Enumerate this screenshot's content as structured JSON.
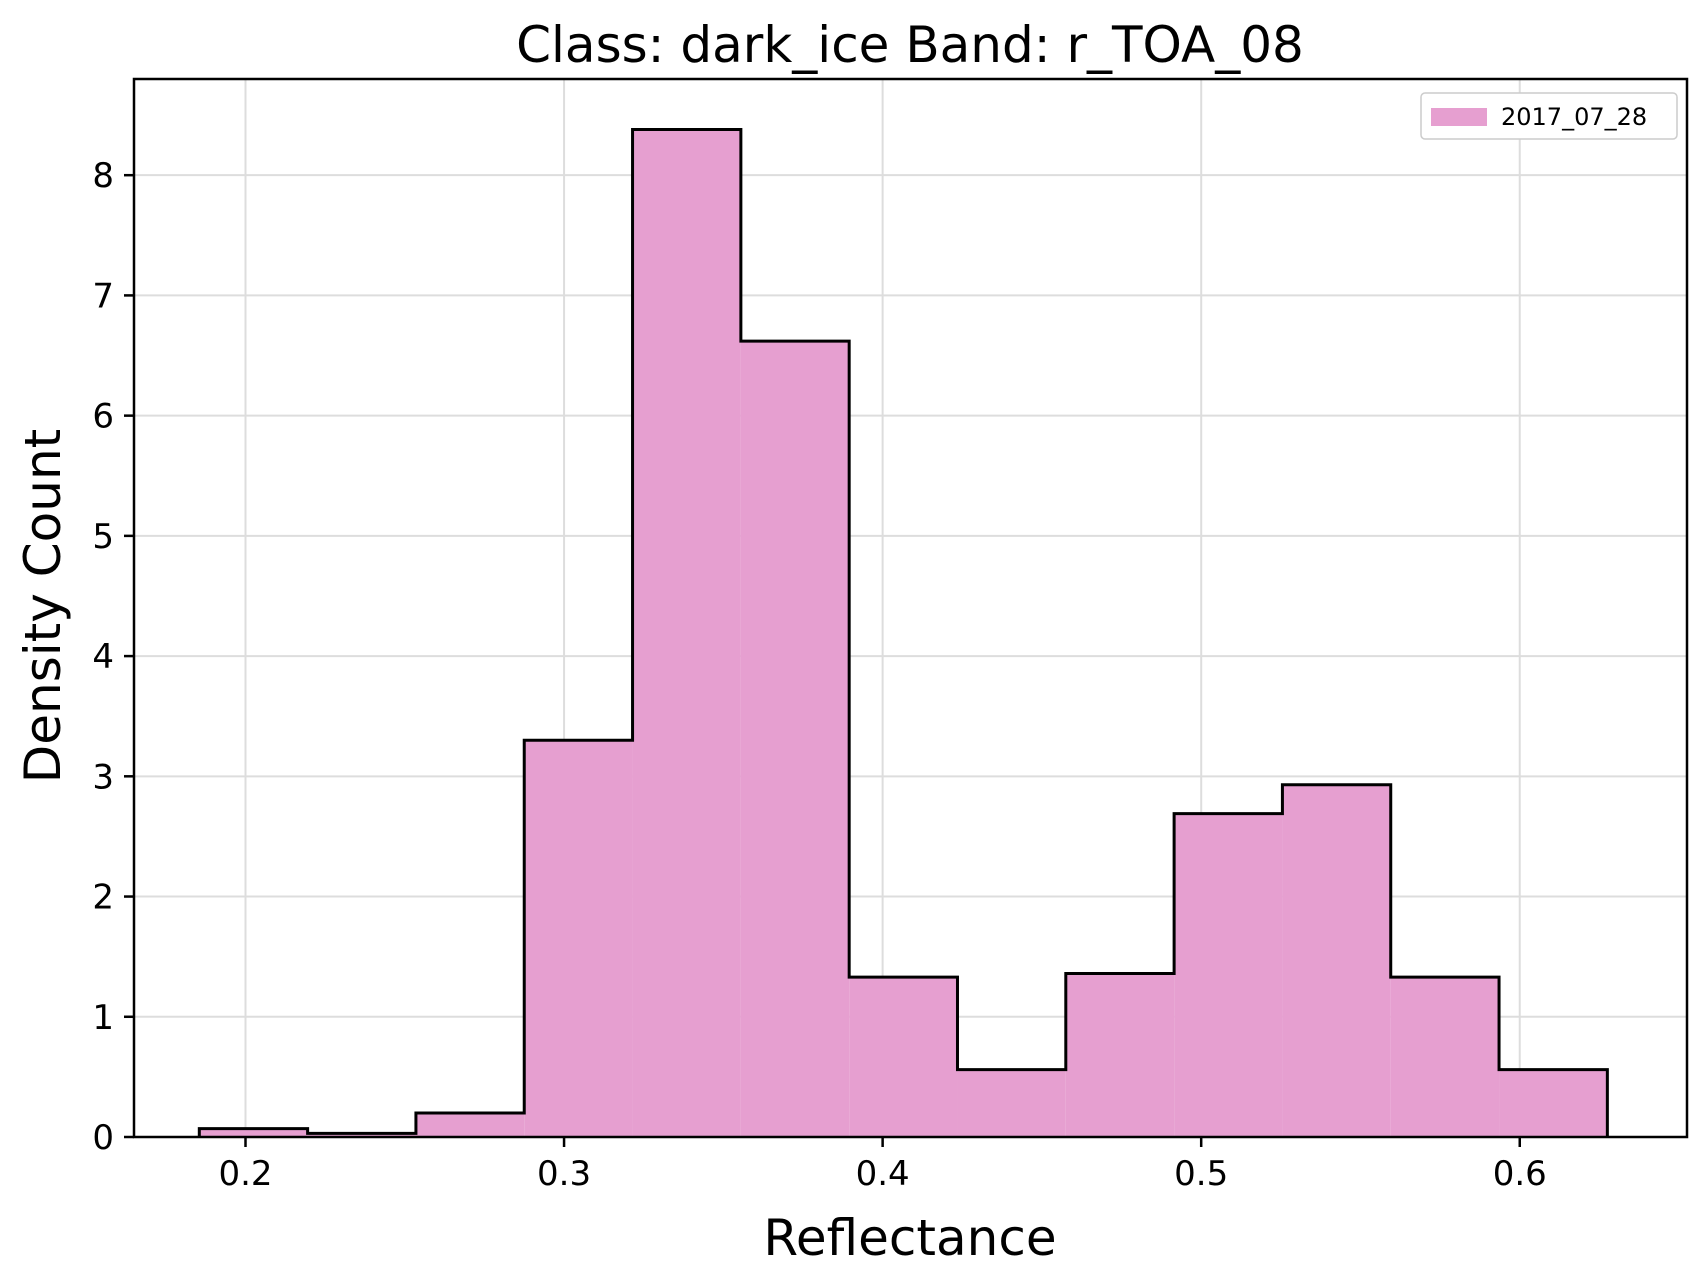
{
  "chart_data": {
    "type": "histogram",
    "title": "Class: dark_ice Band: r_TOA_08",
    "xlabel": "Reflectance",
    "ylabel": "Density Count",
    "xlim": [
      0.165,
      0.6525
    ],
    "ylim": [
      0,
      8.8
    ],
    "xticks": [
      0.2,
      0.3,
      0.4,
      0.5,
      0.6
    ],
    "xtick_labels": [
      "0.2",
      "0.3",
      "0.4",
      "0.5",
      "0.6"
    ],
    "yticks": [
      0,
      1,
      2,
      3,
      4,
      5,
      6,
      7,
      8
    ],
    "ytick_labels": [
      "0",
      "1",
      "2",
      "3",
      "4",
      "5",
      "6",
      "7",
      "8"
    ],
    "grid": true,
    "legend_position": "top-right",
    "series": [
      {
        "name": "2017_07_28",
        "color": "#e69fd0",
        "edge_color": "#000000",
        "bin_edges": [
          0.1855,
          0.2195,
          0.2535,
          0.2875,
          0.3215,
          0.3555,
          0.3895,
          0.4235,
          0.4575,
          0.4915,
          0.5255,
          0.5595,
          0.5935,
          0.6275
        ],
        "values": [
          0.07,
          0.03,
          0.2,
          3.3,
          8.38,
          6.62,
          1.33,
          0.56,
          1.36,
          2.69,
          2.93,
          1.33,
          0.56
        ]
      }
    ]
  }
}
